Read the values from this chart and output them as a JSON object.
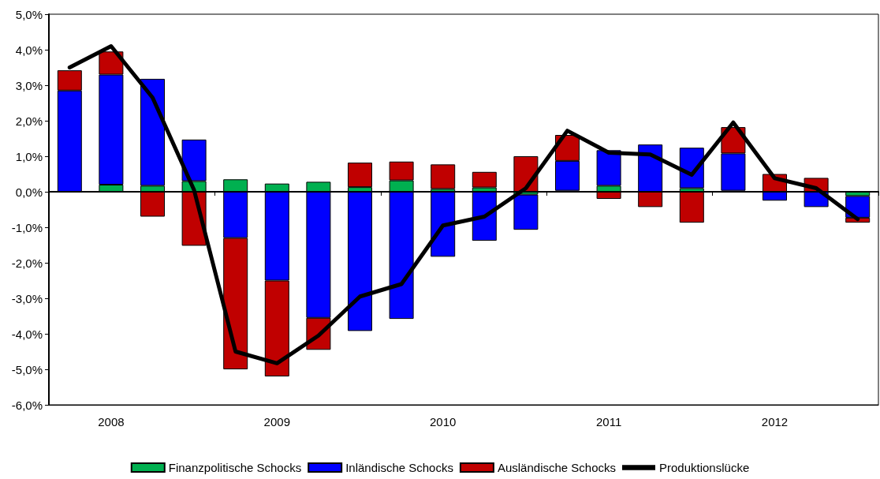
{
  "chart_data": {
    "type": "bar",
    "stacked": true,
    "categories": [
      null,
      "2008",
      null,
      null,
      null,
      "2009",
      null,
      null,
      null,
      "2010",
      null,
      null,
      null,
      "2011",
      null,
      null,
      null,
      "2012",
      null,
      null
    ],
    "series": [
      {
        "name": "Finanzpolitische Schocks",
        "color": "#00b050",
        "values": [
          0,
          0.2,
          0.17,
          0.3,
          0.35,
          0.23,
          0.28,
          0.13,
          0.32,
          0.08,
          0.12,
          -0.08,
          0.03,
          0.17,
          0.0,
          0.1,
          0.03,
          0.0,
          0.0,
          -0.12
        ]
      },
      {
        "name": "Inländische Schocks",
        "color": "#0000ff",
        "values": [
          2.85,
          3.1,
          3.01,
          1.17,
          -1.3,
          -2.5,
          -3.55,
          -3.92,
          -3.58,
          -1.83,
          -1.38,
          -0.99,
          0.84,
          1.0,
          1.33,
          1.14,
          1.05,
          -0.25,
          -0.43,
          -0.61
        ]
      },
      {
        "name": "Ausländische Schocks",
        "color": "#c00000",
        "values": [
          0.57,
          0.65,
          -0.7,
          -1.52,
          -3.7,
          -2.7,
          -0.9,
          0.69,
          0.53,
          0.69,
          0.44,
          1.0,
          0.73,
          -0.2,
          -0.43,
          -0.87,
          0.74,
          0.5,
          0.39,
          -0.14
        ]
      },
      {
        "name": "Produktionslücke",
        "type": "line",
        "color": "#000000",
        "values": [
          3.5,
          4.1,
          2.65,
          0.05,
          -4.5,
          -4.83,
          -4.05,
          -2.95,
          -2.6,
          -0.95,
          -0.7,
          0.1,
          1.72,
          1.1,
          1.05,
          0.48,
          1.95,
          0.38,
          0.1,
          -0.77
        ]
      }
    ],
    "ylim": [
      -6,
      5
    ],
    "yticks": [
      {
        "value": -6,
        "label": "-6,0%"
      },
      {
        "value": -5,
        "label": "-5,0%"
      },
      {
        "value": -4,
        "label": "-4,0%"
      },
      {
        "value": -3,
        "label": "-3,0%"
      },
      {
        "value": -2,
        "label": "-2,0%"
      },
      {
        "value": -1,
        "label": "-1,0%"
      },
      {
        "value": 0,
        "label": "0,0%"
      },
      {
        "value": 1,
        "label": "1,0%"
      },
      {
        "value": 2,
        "label": "2,0%"
      },
      {
        "value": 3,
        "label": "3,0%"
      },
      {
        "value": 4,
        "label": "4,0%"
      },
      {
        "value": 5,
        "label": "5,0%"
      }
    ],
    "legend": "bottom",
    "marker": "none",
    "line_style": "solid"
  }
}
